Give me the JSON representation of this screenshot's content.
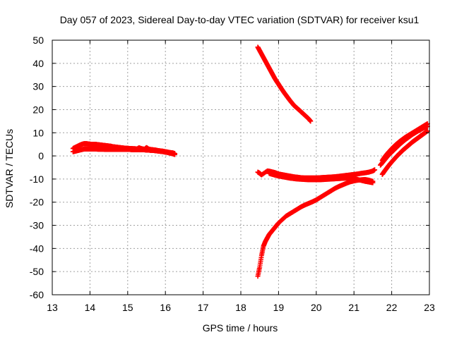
{
  "chart_data": {
    "type": "scatter",
    "title": "Day 057 of 2023, Sidereal Day-to-day VTEC variation (SDTVAR) for receiver ksu1",
    "xlabel": "GPS time / hours",
    "ylabel": "SDTVAR / TECUs",
    "xlim": [
      13,
      23
    ],
    "ylim": [
      -60,
      50
    ],
    "xticks": [
      13,
      14,
      15,
      16,
      17,
      18,
      19,
      20,
      21,
      22,
      23
    ],
    "yticks": [
      -60,
      -50,
      -40,
      -30,
      -20,
      -10,
      0,
      10,
      20,
      30,
      40,
      50
    ],
    "grid": true,
    "marker": "+",
    "colors": {
      "series": "#ff0000",
      "grid": "#a0a0a0",
      "axis": "#000000"
    },
    "series": [
      {
        "x": [
          13.55,
          13.6,
          13.65,
          13.7,
          13.75,
          13.8,
          13.85,
          13.9,
          13.95,
          14.0,
          14.05,
          14.1,
          14.15,
          14.2,
          14.25,
          14.3,
          14.35,
          14.4,
          14.45,
          14.5,
          14.55,
          14.6,
          14.65,
          14.7,
          14.75,
          14.8,
          14.85,
          14.9,
          14.95,
          15.0,
          15.05,
          15.1,
          15.15,
          15.2,
          15.25,
          15.3,
          15.35,
          15.4,
          15.45,
          15.5,
          15.55,
          15.6,
          15.65,
          15.7,
          15.75,
          15.8,
          15.85,
          15.9,
          15.95,
          16.0,
          16.05,
          16.1,
          16.15,
          16.2,
          16.25
        ],
        "y": [
          3.2,
          3.6,
          4.0,
          4.4,
          4.8,
          5.1,
          5.3,
          5.3,
          5.2,
          5.1,
          5.0,
          5.0,
          5.0,
          4.9,
          4.8,
          4.7,
          4.6,
          4.5,
          4.4,
          4.3,
          4.2,
          4.0,
          3.9,
          3.8,
          3.7,
          3.6,
          3.5,
          3.4,
          3.3,
          3.3,
          3.2,
          3.2,
          3.1,
          3.1,
          3.0,
          3.5,
          3.2,
          3.0,
          2.9,
          3.6,
          3.0,
          2.8,
          2.7,
          2.6,
          2.5,
          2.3,
          2.2,
          2.1,
          2.0,
          1.8,
          1.7,
          1.5,
          1.4,
          1.3,
          1.0
        ]
      },
      {
        "x": [
          13.55,
          13.6,
          13.65,
          13.7,
          13.75,
          13.8,
          13.85,
          13.9,
          13.95,
          14.0,
          14.05,
          14.1,
          14.15,
          14.2,
          14.25,
          14.3,
          14.35,
          14.4,
          14.45,
          14.5,
          14.55,
          14.6,
          14.65,
          14.7,
          14.75,
          14.8,
          14.85,
          14.9,
          14.95,
          15.0,
          15.05,
          15.1,
          15.15,
          15.2,
          15.25,
          15.3,
          15.35,
          15.4,
          15.45,
          15.5,
          15.55,
          15.6,
          15.65,
          15.7,
          15.75,
          15.8,
          15.85,
          15.9,
          15.95,
          16.0,
          16.05,
          16.1,
          16.15,
          16.2,
          16.25
        ],
        "y": [
          1.8,
          2.0,
          2.2,
          2.4,
          2.6,
          2.8,
          3.0,
          3.0,
          3.0,
          3.0,
          3.0,
          3.0,
          3.0,
          2.9,
          2.9,
          2.9,
          2.9,
          2.8,
          2.8,
          2.8,
          2.8,
          2.8,
          2.8,
          2.8,
          2.8,
          2.8,
          2.8,
          2.8,
          2.8,
          2.8,
          2.8,
          2.7,
          2.7,
          2.7,
          2.7,
          2.7,
          2.6,
          2.6,
          2.6,
          2.5,
          2.5,
          2.4,
          2.4,
          2.3,
          2.2,
          2.1,
          2.0,
          1.9,
          1.8,
          1.6,
          1.5,
          1.3,
          1.1,
          0.9,
          0.6
        ]
      },
      {
        "x": [
          18.45,
          18.5,
          18.55,
          18.6,
          18.65,
          18.7,
          18.75,
          18.8,
          18.85,
          18.9,
          18.95,
          19.0,
          19.05,
          19.1,
          19.15,
          19.2,
          19.25,
          19.3,
          19.35,
          19.4,
          19.45,
          19.5,
          19.55,
          19.6,
          19.65,
          19.7,
          19.75,
          19.8,
          19.85
        ],
        "y": [
          47,
          45.5,
          44,
          42.5,
          41,
          39.5,
          38,
          36.5,
          35,
          33.5,
          32.2,
          31,
          29.7,
          28.5,
          27.3,
          26.2,
          25.1,
          24,
          23,
          22,
          21.2,
          20.5,
          19.8,
          19,
          18.3,
          17.5,
          16.8,
          16,
          15
        ]
      },
      {
        "x": [
          18.45,
          18.5,
          18.55,
          18.6,
          18.65,
          18.7,
          18.75,
          18.8,
          18.85,
          18.9,
          18.95,
          19.0,
          19.1,
          19.2,
          19.3,
          19.4,
          19.5,
          19.6,
          19.7,
          19.8,
          19.9,
          20.0,
          20.1,
          20.2,
          20.3,
          20.4,
          20.5,
          20.6,
          20.7,
          20.8,
          20.9,
          21.0,
          21.1,
          21.2,
          21.3,
          21.4,
          21.5
        ],
        "y": [
          -52,
          -48,
          -43,
          -39,
          -37,
          -35.5,
          -34,
          -33,
          -32,
          -31,
          -30,
          -29,
          -27.5,
          -26,
          -25,
          -24,
          -23,
          -22,
          -21.2,
          -20.5,
          -19.8,
          -19,
          -18,
          -17,
          -16,
          -15,
          -14,
          -13.2,
          -12.5,
          -11.8,
          -11.2,
          -10.8,
          -10.5,
          -10.3,
          -10.2,
          -10.5,
          -11
        ]
      },
      {
        "x": [
          18.45,
          18.5,
          18.55,
          18.7,
          18.75,
          18.8,
          18.85,
          18.9,
          18.95,
          19.0,
          19.1,
          19.2,
          19.3,
          19.4,
          19.5,
          19.6,
          19.7,
          19.8,
          19.9,
          20.0,
          20.1,
          20.2,
          20.3,
          20.4,
          20.5,
          20.6,
          20.7,
          20.8,
          20.9,
          21.0,
          21.1,
          21.2,
          21.3,
          21.4,
          21.5,
          21.55
        ],
        "y": [
          -7,
          -7.5,
          -8.2,
          -6.5,
          -6.6,
          -6.8,
          -7,
          -7.2,
          -7.5,
          -7.8,
          -8.1,
          -8.4,
          -8.7,
          -9,
          -9.2,
          -9.4,
          -9.5,
          -9.5,
          -9.5,
          -9.5,
          -9.4,
          -9.3,
          -9.2,
          -9.1,
          -9.0,
          -8.8,
          -8.6,
          -8.4,
          -8.2,
          -8.0,
          -7.8,
          -7.5,
          -7.3,
          -7,
          -6.5,
          -6
        ]
      },
      {
        "x": [
          18.75,
          18.8,
          18.9,
          19.0,
          19.1,
          19.2,
          19.3,
          19.4,
          19.5,
          19.6,
          19.7,
          19.8,
          19.9,
          20.0,
          20.1,
          20.2,
          20.3,
          20.4,
          20.5,
          20.6,
          20.7,
          20.8,
          20.9,
          21.0,
          21.1,
          21.2,
          21.3,
          21.4,
          21.5
        ],
        "y": [
          -7.5,
          -7.8,
          -8.3,
          -8.7,
          -9,
          -9.3,
          -9.6,
          -9.8,
          -10,
          -10.1,
          -10.2,
          -10.3,
          -10.3,
          -10.3,
          -10.3,
          -10.2,
          -10.1,
          -10,
          -9.9,
          -9.8,
          -9.7,
          -9.6,
          -9.5,
          -9.8,
          -10.2,
          -10.6,
          -11,
          -11.3,
          -11.6
        ]
      },
      {
        "x": [
          21.75,
          21.8,
          21.85,
          21.9,
          21.95,
          22.0,
          22.05,
          22.1,
          22.15,
          22.2,
          22.25,
          22.3,
          22.35,
          22.4,
          22.45,
          22.5,
          22.55,
          22.6,
          22.65,
          22.7,
          22.75,
          22.8,
          22.85,
          22.9,
          22.95
        ],
        "y": [
          -2,
          -0.8,
          0.3,
          1.3,
          2.2,
          3.1,
          3.9,
          4.7,
          5.4,
          6.1,
          6.7,
          7.3,
          7.9,
          8.4,
          8.9,
          9.4,
          9.9,
          10.4,
          10.9,
          11.4,
          11.9,
          12.4,
          12.9,
          13.4,
          13.9
        ]
      },
      {
        "x": [
          21.7,
          21.75,
          21.8,
          21.85,
          21.9,
          21.95,
          22.0,
          22.05,
          22.1,
          22.15,
          22.2,
          22.25,
          22.3,
          22.35,
          22.4,
          22.45,
          22.5,
          22.55,
          22.6,
          22.65,
          22.7,
          22.75,
          22.8,
          22.85,
          22.9,
          22.95
        ],
        "y": [
          -4,
          -3,
          -2,
          -1,
          0,
          0.8,
          1.6,
          2.4,
          3.2,
          4,
          4.8,
          5.5,
          6.2,
          6.9,
          7.5,
          8.1,
          8.7,
          9.3,
          9.8,
          10.3,
          10.8,
          11.2,
          11.7,
          12.1,
          12.5,
          12.8
        ]
      },
      {
        "x": [
          21.75,
          21.8,
          21.85,
          21.9,
          21.95,
          22.0,
          22.05,
          22.1,
          22.15,
          22.2,
          22.25,
          22.3,
          22.35,
          22.4,
          22.45,
          22.5,
          22.55,
          22.6,
          22.65,
          22.7,
          22.75,
          22.8,
          22.85,
          22.9,
          22.95
        ],
        "y": [
          -8,
          -6.8,
          -5.7,
          -4.6,
          -3.6,
          -2.6,
          -1.7,
          -0.8,
          0.1,
          0.9,
          1.7,
          2.5,
          3.2,
          3.9,
          4.6,
          5.3,
          6.0,
          6.6,
          7.2,
          7.8,
          8.4,
          9.0,
          9.6,
          10.2,
          10.8
        ]
      }
    ]
  }
}
